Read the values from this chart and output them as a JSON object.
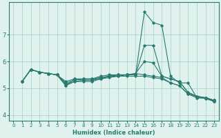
{
  "xlabel": "Humidex (Indice chaleur)",
  "xlim": [
    -0.5,
    23.5
  ],
  "ylim": [
    3.8,
    8.2
  ],
  "yticks": [
    4,
    5,
    6,
    7
  ],
  "xticks": [
    0,
    1,
    2,
    3,
    4,
    5,
    6,
    7,
    8,
    9,
    10,
    11,
    12,
    13,
    14,
    15,
    16,
    17,
    18,
    19,
    20,
    21,
    22,
    23
  ],
  "line_color": "#2a7a6f",
  "bg_color": "#dff2ee",
  "grid_color": "#a8cdc7",
  "lines": [
    [
      0,
      5.25,
      5.7,
      5.6,
      5.55,
      5.5,
      5.1,
      5.35,
      5.3,
      5.3,
      5.35,
      5.4,
      5.45,
      5.5,
      5.5,
      7.85,
      7.45,
      7.35,
      5.45,
      5.2,
      5.2,
      4.65,
      4.65,
      4.55
    ],
    [
      0,
      5.25,
      5.7,
      5.6,
      5.55,
      5.5,
      5.1,
      5.25,
      5.25,
      5.25,
      5.35,
      5.45,
      5.5,
      5.5,
      5.5,
      6.6,
      6.6,
      5.45,
      5.35,
      5.25,
      4.85,
      4.7,
      4.65,
      4.55
    ],
    [
      0,
      5.25,
      5.7,
      5.6,
      5.55,
      5.5,
      5.15,
      5.25,
      5.3,
      5.3,
      5.4,
      5.45,
      5.5,
      5.5,
      5.55,
      6.0,
      5.95,
      5.45,
      5.35,
      5.25,
      4.85,
      4.7,
      4.65,
      4.55
    ],
    [
      0,
      5.25,
      5.7,
      5.6,
      5.55,
      5.5,
      5.2,
      5.3,
      5.35,
      5.35,
      5.45,
      5.5,
      5.5,
      5.5,
      5.55,
      5.5,
      5.45,
      5.4,
      5.2,
      5.1,
      4.8,
      4.68,
      4.63,
      4.52
    ],
    [
      0,
      5.25,
      5.7,
      5.6,
      5.55,
      5.5,
      5.25,
      5.35,
      5.35,
      5.35,
      5.4,
      5.45,
      5.45,
      5.45,
      5.45,
      5.45,
      5.4,
      5.35,
      5.2,
      5.1,
      4.78,
      4.65,
      4.62,
      4.5
    ]
  ],
  "xlabel_fontsize": 6.0,
  "tick_fontsize_x": 5.2,
  "tick_fontsize_y": 6.0
}
